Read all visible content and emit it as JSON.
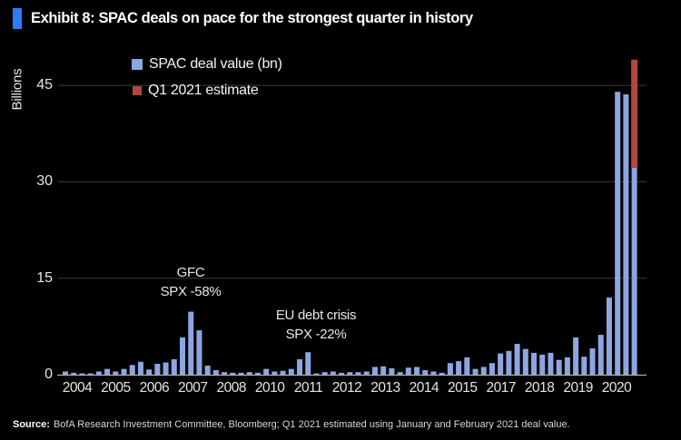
{
  "header": {
    "title": "Exhibit 8: SPAC deals on pace for the strongest quarter in history",
    "accent_color": "#2e7cf6"
  },
  "legend": {
    "deal_value_label": "SPAC deal value (bn)",
    "estimate_label": "Q1 2021 estimate"
  },
  "source": {
    "label": "Source:",
    "text": "BofA Research Investment Committee, Bloomberg; Q1 2021 estimated using January and February 2021 deal value."
  },
  "chart_data": {
    "type": "bar",
    "title": "Exhibit 8: SPAC deals on pace for the strongest quarter in history",
    "ylabel": "Billions",
    "yticks": [
      0,
      15,
      30,
      45
    ],
    "ylim": [
      0,
      52
    ],
    "grid": "horizontal",
    "legend_position": "top-left",
    "x_axis_labels": [
      "2004",
      "2005",
      "2006",
      "2007",
      "2008",
      "2010",
      "2011",
      "2012",
      "2013",
      "2014",
      "2015",
      "2017",
      "2018",
      "2019",
      "2020"
    ],
    "colors": {
      "deal_value": "#8da6e2",
      "estimate": "#b2473f",
      "gridline": "#3c3c3c",
      "axis_line": "#b5b1a8"
    },
    "quarterly": [
      {
        "year": 2004,
        "q": [
          0.5,
          0.3,
          0.2,
          0.2
        ]
      },
      {
        "year": 2005,
        "q": [
          0.5,
          0.9,
          0.5,
          0.9
        ]
      },
      {
        "year": 2006,
        "q": [
          1.5,
          2.0,
          0.8,
          1.7
        ]
      },
      {
        "year": 2007,
        "q": [
          1.9,
          2.4,
          5.8,
          9.8
        ]
      },
      {
        "year": 2008,
        "q": [
          6.9,
          1.4,
          0.7,
          0.4
        ]
      },
      {
        "year": 2009,
        "q": [
          0.3,
          0.3,
          0.4,
          0.3
        ]
      },
      {
        "year": 2010,
        "q": [
          0.9,
          0.5,
          0.6,
          0.9
        ]
      },
      {
        "year": 2011,
        "q": [
          2.4,
          3.5,
          0.2,
          0.4
        ]
      },
      {
        "year": 2012,
        "q": [
          0.5,
          0.3,
          0.4,
          0.4
        ]
      },
      {
        "year": 2013,
        "q": [
          0.5,
          1.2,
          1.3,
          1.0
        ]
      },
      {
        "year": 2014,
        "q": [
          0.4,
          1.1,
          1.2,
          0.7
        ]
      },
      {
        "year": 2015,
        "q": [
          0.5,
          0.3,
          1.8,
          2.1
        ]
      },
      {
        "year": 2016,
        "q": [
          2.7,
          0.9,
          1.2,
          1.8
        ]
      },
      {
        "year": 2017,
        "q": [
          3.3,
          3.7,
          4.8,
          4.0
        ]
      },
      {
        "year": 2018,
        "q": [
          3.4,
          3.1,
          3.4,
          2.3
        ]
      },
      {
        "year": 2019,
        "q": [
          2.7,
          5.8,
          2.8,
          4.1
        ]
      },
      {
        "year": 2020,
        "q": [
          6.2,
          12.0,
          44.0,
          43.6
        ]
      }
    ],
    "q1_2021": {
      "year": 2021,
      "quarter": "Q1",
      "actual_to_date": 32.2,
      "estimate_total": 49.0
    },
    "annotations": [
      {
        "line1": "GFC",
        "line2": "SPX -58%"
      },
      {
        "line1": "EU debt crisis",
        "line2": "SPX -22%"
      }
    ]
  }
}
